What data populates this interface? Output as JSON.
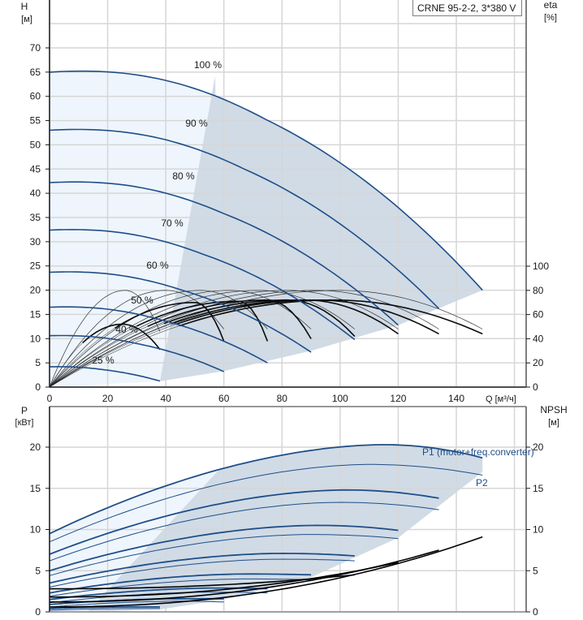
{
  "chart_data": [
    {
      "type": "line",
      "title": "CRNE 95-2-2, 3*380 V",
      "xlabel": "Q [м³/ч]",
      "ylabel": "H",
      "ylabel_unit": "[м]",
      "y2label": "eta",
      "y2label_unit": "[%]",
      "xlim": [
        0,
        150
      ],
      "ylim": [
        0,
        77
      ],
      "y2lim": [
        0,
        100
      ],
      "x_ticks": [
        0,
        20,
        40,
        60,
        80,
        100,
        120,
        140
      ],
      "y_ticks": [
        0,
        5,
        10,
        15,
        20,
        25,
        30,
        35,
        40,
        45,
        50,
        55,
        60,
        65,
        70
      ],
      "y2_ticks": [
        0,
        20,
        40,
        60,
        80,
        100
      ],
      "grid": true,
      "head_curves": [
        {
          "name": "100 %",
          "speed": 1.0,
          "h0": 65.0,
          "qmax": 149
        },
        {
          "name": "90 %",
          "speed": 0.9,
          "h0": 53.0,
          "qmax": 134
        },
        {
          "name": "80 %",
          "speed": 0.8,
          "h0": 42.2,
          "qmax": 120
        },
        {
          "name": "70 %",
          "speed": 0.7,
          "h0": 32.4,
          "qmax": 105
        },
        {
          "name": "60 %",
          "speed": 0.6,
          "h0": 23.7,
          "qmax": 90
        },
        {
          "name": "50 %",
          "speed": 0.5,
          "h0": 16.5,
          "qmax": 75
        },
        {
          "name": "40 %",
          "speed": 0.4,
          "h0": 10.6,
          "qmax": 60
        },
        {
          "name": "25 %",
          "speed": 0.25,
          "h0": 4.2,
          "qmax": 38
        }
      ],
      "eta_curves_peak": [
        {
          "qpeak": 26,
          "eta": 80,
          "qend": 38,
          "eta_end": 46
        },
        {
          "qpeak": 40,
          "eta": 80,
          "qend": 60,
          "eta_end": 48
        },
        {
          "qpeak": 52,
          "eta": 80,
          "qend": 75,
          "eta_end": 48
        },
        {
          "qpeak": 62,
          "eta": 80,
          "qend": 90,
          "eta_end": 48
        },
        {
          "qpeak": 72,
          "eta": 80,
          "qend": 105,
          "eta_end": 48
        },
        {
          "qpeak": 82,
          "eta": 80,
          "qend": 120,
          "eta_end": 48
        },
        {
          "qpeak": 92,
          "eta": 80,
          "qend": 134,
          "eta_end": 48
        },
        {
          "qpeak": 100,
          "eta": 80,
          "qend": 149,
          "eta_end": 48
        }
      ],
      "eta_combined_curves": [
        {
          "qpeak": 25,
          "eta": 52,
          "qend": 38,
          "eta_end": 31
        },
        {
          "qpeak": 50,
          "eta": 70,
          "qend": 60,
          "eta_end": 38
        },
        {
          "qpeak": 65,
          "eta": 71,
          "qend": 75,
          "eta_end": 38
        },
        {
          "qpeak": 75,
          "eta": 72,
          "qend": 90,
          "eta_end": 40
        },
        {
          "qpeak": 82,
          "eta": 72,
          "qend": 105,
          "eta_end": 42
        },
        {
          "qpeak": 88,
          "eta": 72,
          "qend": 120,
          "eta_end": 44
        },
        {
          "qpeak": 92,
          "eta": 72,
          "qend": 134,
          "eta_end": 44
        },
        {
          "qpeak": 98,
          "eta": 72,
          "qend": 149,
          "eta_end": 44
        }
      ]
    },
    {
      "type": "line",
      "title": "",
      "xlabel": "Q [м³/ч]",
      "ylabel": "P",
      "ylabel_unit": "[кВт]",
      "y2label": "NPSH",
      "y2label_unit": "[м]",
      "xlim": [
        0,
        150
      ],
      "ylim": [
        0,
        23
      ],
      "y2lim": [
        0,
        23
      ],
      "y_ticks": [
        0,
        5,
        10,
        15,
        20
      ],
      "y2_ticks": [
        0,
        5,
        10,
        15,
        20
      ],
      "grid": true,
      "legend": [
        "P1 (motor+freq.converter)",
        "P2"
      ],
      "p1_curves": [
        {
          "speed": 1.0,
          "p0": 9.5,
          "ppeak": 20.3,
          "qpeak": 115,
          "qmax": 149,
          "pend": 18.7
        },
        {
          "speed": 0.9,
          "p0": 7.0,
          "ppeak": 14.8,
          "qpeak": 102,
          "qmax": 134,
          "pend": 13.8
        },
        {
          "speed": 0.8,
          "p0": 5.0,
          "ppeak": 10.5,
          "qpeak": 92,
          "qmax": 120,
          "pend": 9.9
        },
        {
          "speed": 0.7,
          "p0": 3.5,
          "ppeak": 7.1,
          "qpeak": 80,
          "qmax": 105,
          "pend": 6.8
        },
        {
          "speed": 0.6,
          "p0": 2.3,
          "ppeak": 4.6,
          "qpeak": 68,
          "qmax": 90,
          "pend": 4.5
        },
        {
          "speed": 0.5,
          "p0": 1.5,
          "ppeak": 2.9,
          "qpeak": 58,
          "qmax": 75,
          "pend": 2.8
        },
        {
          "speed": 0.4,
          "p0": 0.9,
          "ppeak": 1.6,
          "qpeak": 46,
          "qmax": 60,
          "pend": 1.6
        },
        {
          "speed": 0.25,
          "p0": 0.4,
          "ppeak": 0.6,
          "qpeak": 30,
          "qmax": 38,
          "pend": 0.6
        }
      ],
      "p2_curves": [
        {
          "speed": 1.0,
          "p0": 8.5,
          "ppeak": 17.9,
          "qpeak": 110,
          "qmax": 149,
          "pend": 16.6
        },
        {
          "speed": 0.9,
          "p0": 6.2,
          "ppeak": 13.3,
          "qpeak": 100,
          "qmax": 134,
          "pend": 12.4
        },
        {
          "speed": 0.8,
          "p0": 4.4,
          "ppeak": 9.4,
          "qpeak": 90,
          "qmax": 120,
          "pend": 8.9
        },
        {
          "speed": 0.7,
          "p0": 3.0,
          "ppeak": 6.4,
          "qpeak": 80,
          "qmax": 105,
          "pend": 6.2
        },
        {
          "speed": 0.6,
          "p0": 1.9,
          "ppeak": 4.0,
          "qpeak": 68,
          "qmax": 90,
          "pend": 3.9
        },
        {
          "speed": 0.5,
          "p0": 1.1,
          "ppeak": 2.4,
          "qpeak": 56,
          "qmax": 75,
          "pend": 2.3
        },
        {
          "speed": 0.4,
          "p0": 0.6,
          "ppeak": 1.3,
          "qpeak": 45,
          "qmax": 60,
          "pend": 1.2
        },
        {
          "speed": 0.25,
          "p0": 0.2,
          "ppeak": 0.4,
          "qpeak": 30,
          "qmax": 38,
          "pend": 0.4
        }
      ],
      "npsh_curves": [
        {
          "qstart": 0,
          "n0": 2.8,
          "qend": 105,
          "nend": 4.5
        },
        {
          "qstart": 0,
          "n0": 1.8,
          "qend": 120,
          "nend": 6.0
        },
        {
          "qstart": 0,
          "n0": 1.2,
          "qend": 134,
          "nend": 7.5
        },
        {
          "qstart": 0,
          "n0": 0.6,
          "qend": 149,
          "nend": 9.1
        }
      ]
    }
  ],
  "labels": {
    "title": "CRNE 95-2-2, 3*380 V",
    "top_y": "H",
    "top_y_unit": "[м]",
    "top_y2": "eta",
    "top_y2_unit": "[%]",
    "x": "Q [м³/ч]",
    "bot_y": "P",
    "bot_y_unit": "[кВт]",
    "bot_y2": "NPSH",
    "bot_y2_unit": "[м]",
    "p1": "P1 (motor+freq.converter)",
    "p2": "P2"
  },
  "colors": {
    "curve": "#1f4e88",
    "region_dark": "#d0dbe6",
    "region_light": "#eef5fc",
    "grid": "#d6d6d6",
    "axis": "#1a1a1a"
  }
}
